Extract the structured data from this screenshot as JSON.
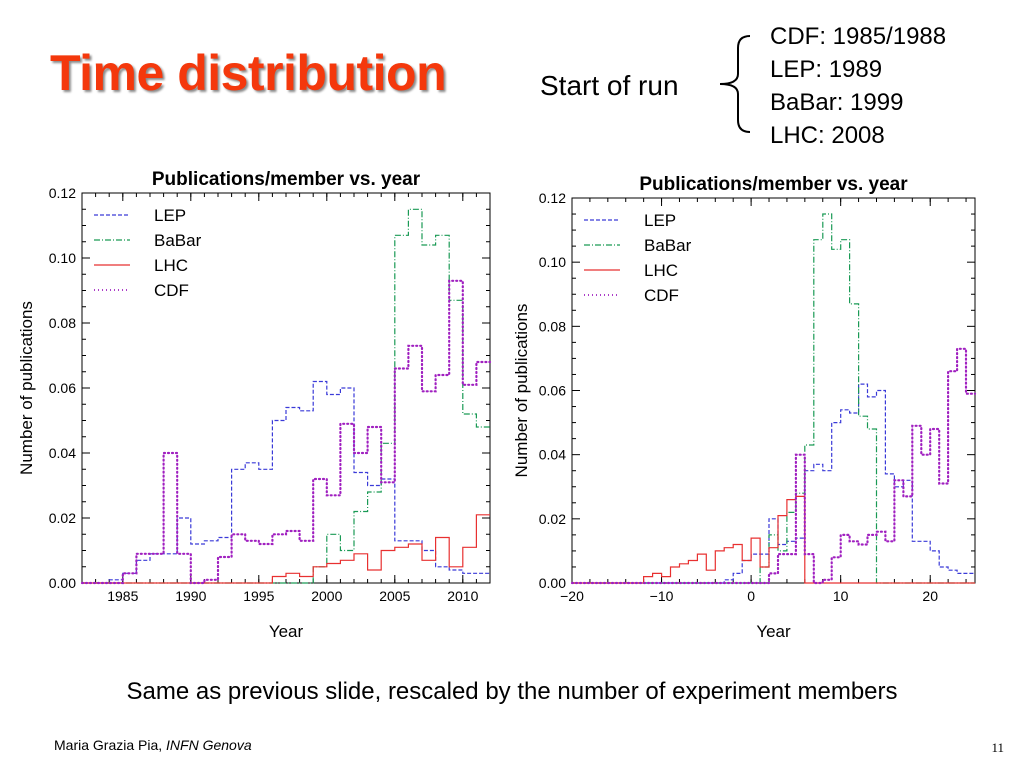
{
  "slide": {
    "title": "Time distribution",
    "run_label": "Start of run",
    "runs": [
      "CDF: 1985/1988",
      "LEP: 1989",
      "BaBar: 1999",
      "LHC: 2008"
    ],
    "caption": "Same as previous slide, rescaled by the number of experiment members",
    "author": "Maria Grazia Pia,",
    "affiliation": "INFN Genova",
    "page_number": "11"
  },
  "chart_data": [
    {
      "type": "line",
      "step": true,
      "title": "Publications/member vs. year",
      "xlabel": "Year",
      "ylabel": "Number of publications",
      "xlim": [
        1982,
        2012
      ],
      "ylim": [
        0,
        0.12
      ],
      "xticks": [
        1985,
        1990,
        1995,
        2000,
        2005,
        2010
      ],
      "yticks": [
        "0.00",
        "0.02",
        "0.04",
        "0.06",
        "0.08",
        "0.10",
        "0.12"
      ],
      "legend_position": "top-left",
      "x": [
        1982,
        1983,
        1984,
        1985,
        1986,
        1987,
        1988,
        1989,
        1990,
        1991,
        1992,
        1993,
        1994,
        1995,
        1996,
        1997,
        1998,
        1999,
        2000,
        2001,
        2002,
        2003,
        2004,
        2005,
        2006,
        2007,
        2008,
        2009,
        2010,
        2011
      ],
      "series": [
        {
          "name": "LEP",
          "color": "#3a3ad8",
          "dash": "4,2",
          "values": [
            0,
            0,
            0.001,
            0.003,
            0.007,
            0.009,
            0.009,
            0.02,
            0.012,
            0.013,
            0.014,
            0.035,
            0.037,
            0.035,
            0.05,
            0.054,
            0.053,
            0.062,
            0.058,
            0.06,
            0.034,
            0.03,
            0.032,
            0.013,
            0.013,
            0.01,
            0.005,
            0.004,
            0.003,
            0.003
          ]
        },
        {
          "name": "BaBar",
          "color": "#1a9a55",
          "dash": "6,2,1,2",
          "values": [
            0,
            0,
            0,
            0,
            0,
            0,
            0,
            0,
            0,
            0,
            0,
            0,
            0,
            0,
            0,
            0,
            0,
            0.005,
            0.015,
            0.01,
            0.022,
            0.028,
            0.043,
            0.107,
            0.115,
            0.104,
            0.107,
            0.087,
            0.052,
            0.048
          ]
        },
        {
          "name": "LHC",
          "color": "#e83030",
          "dash": "",
          "values": [
            0,
            0,
            0,
            0,
            0,
            0,
            0,
            0,
            0,
            0,
            0,
            0,
            0,
            0,
            0.002,
            0.003,
            0.002,
            0.005,
            0.006,
            0.007,
            0.009,
            0.004,
            0.01,
            0.011,
            0.012,
            0.007,
            0.014,
            0.005,
            0.011,
            0.021
          ]
        },
        {
          "name": "CDF",
          "color": "#a020c0",
          "dash": "1,3",
          "values": [
            0,
            0,
            0,
            0.003,
            0.009,
            0.009,
            0.04,
            0.009,
            0,
            0.001,
            0.008,
            0.015,
            0.013,
            0.012,
            0.015,
            0.016,
            0.013,
            0.032,
            0.027,
            0.049,
            0.04,
            0.048,
            0.031,
            0.066,
            0.073,
            0.059,
            0.064,
            0.093,
            0.061,
            0.068
          ]
        }
      ]
    },
    {
      "type": "line",
      "step": true,
      "title": "Publications/member vs. year",
      "xlabel": "Year",
      "ylabel": "Number of publications",
      "xlim": [
        -20,
        25
      ],
      "ylim": [
        0,
        0.12
      ],
      "xticks": [
        "−20",
        "−10",
        "0",
        "10",
        "20"
      ],
      "yticks": [
        "0.00",
        "0.02",
        "0.04",
        "0.06",
        "0.08",
        "0.10",
        "0.12"
      ],
      "legend_position": "top-left",
      "x": [
        -20,
        -19,
        -18,
        -17,
        -16,
        -15,
        -14,
        -13,
        -12,
        -11,
        -10,
        -9,
        -8,
        -7,
        -6,
        -5,
        -4,
        -3,
        -2,
        -1,
        0,
        1,
        2,
        3,
        4,
        5,
        6,
        7,
        8,
        9,
        10,
        11,
        12,
        13,
        14,
        15,
        16,
        17,
        18,
        19,
        20,
        21,
        22,
        23,
        24
      ],
      "series": [
        {
          "name": "LEP",
          "color": "#3a3ad8",
          "dash": "4,2",
          "values": [
            0,
            0,
            0,
            0,
            0,
            0,
            0,
            0,
            0,
            0,
            0,
            0,
            0,
            0,
            0,
            0,
            0,
            0.001,
            0.003,
            0.007,
            0.009,
            0.009,
            0.02,
            0.012,
            0.013,
            0.014,
            0.035,
            0.037,
            0.035,
            0.05,
            0.054,
            0.053,
            0.062,
            0.058,
            0.06,
            0.034,
            0.03,
            0.032,
            0.013,
            0.013,
            0.01,
            0.005,
            0.004,
            0.003,
            0.003
          ]
        },
        {
          "name": "BaBar",
          "color": "#1a9a55",
          "dash": "6,2,1,2",
          "values": [
            0,
            0,
            0,
            0,
            0,
            0,
            0,
            0,
            0,
            0,
            0,
            0,
            0,
            0,
            0,
            0,
            0,
            0,
            0,
            0,
            0,
            0.005,
            0.015,
            0.01,
            0.022,
            0.028,
            0.043,
            0.107,
            0.115,
            0.104,
            0.107,
            0.087,
            0.052,
            0.048,
            0,
            0,
            0,
            0,
            0,
            0,
            0,
            0,
            0,
            0,
            0
          ]
        },
        {
          "name": "LHC",
          "color": "#e83030",
          "dash": "",
          "values": [
            0,
            0,
            0,
            0,
            0,
            0,
            0,
            0,
            0.002,
            0.003,
            0.002,
            0.005,
            0.006,
            0.007,
            0.009,
            0.004,
            0.01,
            0.011,
            0.012,
            0.007,
            0.014,
            0.005,
            0.011,
            0.021,
            0.026,
            0.027,
            0,
            0,
            0,
            0,
            0,
            0,
            0,
            0,
            0,
            0,
            0,
            0,
            0,
            0,
            0,
            0,
            0,
            0,
            0
          ]
        },
        {
          "name": "CDF",
          "color": "#a020c0",
          "dash": "1,3",
          "values": [
            0,
            0,
            0,
            0,
            0,
            0,
            0,
            0,
            0,
            0,
            0,
            0,
            0,
            0,
            0,
            0,
            0,
            0,
            0,
            0,
            0,
            0,
            0.003,
            0.009,
            0.009,
            0.04,
            0.009,
            0,
            0.001,
            0.008,
            0.015,
            0.013,
            0.012,
            0.015,
            0.016,
            0.013,
            0.032,
            0.027,
            0.049,
            0.04,
            0.048,
            0.031,
            0.066,
            0.073,
            0.059
          ]
        }
      ]
    }
  ]
}
